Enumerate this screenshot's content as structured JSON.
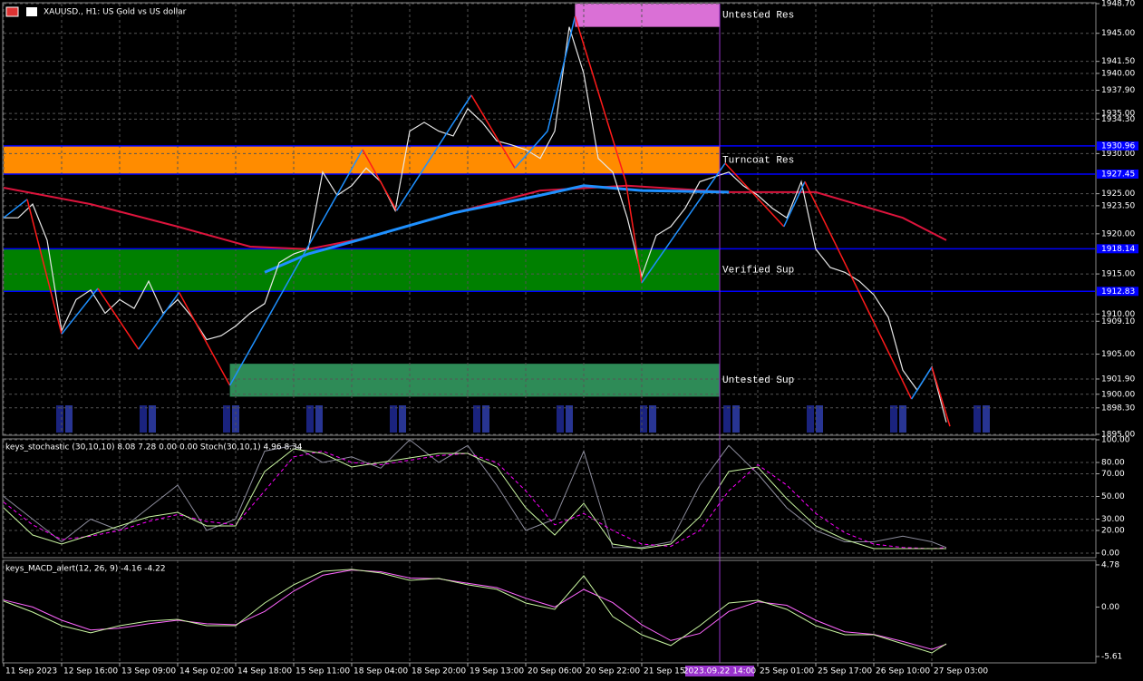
{
  "chart_data": [
    {
      "type": "line",
      "title": "XAUUSD., H1: US Gold vs US dollar",
      "xlim": [
        0,
        75.25
      ],
      "ylim": [
        1895,
        1948.7
      ],
      "grid": true,
      "xticks": [
        {
          "value": 0,
          "label": "11 Sep 2023"
        },
        {
          "value": 4,
          "label": "12 Sep 16:00"
        },
        {
          "value": 8,
          "label": "13 Sep 09:00"
        },
        {
          "value": 12,
          "label": "14 Sep 02:00"
        },
        {
          "value": 16,
          "label": "14 Sep 18:00"
        },
        {
          "value": 20,
          "label": "15 Sep 11:00"
        },
        {
          "value": 24,
          "label": "18 Sep 04:00"
        },
        {
          "value": 28,
          "label": "18 Sep 20:00"
        },
        {
          "value": 32,
          "label": "19 Sep 13:00"
        },
        {
          "value": 36,
          "label": "20 Sep 06:00"
        },
        {
          "value": 40,
          "label": "20 Sep 22:00"
        },
        {
          "value": 44,
          "label": "21 Sep 15:00"
        },
        {
          "value": 52,
          "label": "25 Sep 01:00"
        },
        {
          "value": 56,
          "label": "25 Sep 17:00"
        },
        {
          "value": 60,
          "label": "26 Sep 10:00"
        },
        {
          "value": 64,
          "label": "27 Sep 03:00"
        }
      ],
      "cursor": {
        "value": 49.375,
        "label": "2023.09.22 14:00"
      },
      "yticks": [
        {
          "value": 1948.7,
          "label": "1948.70"
        },
        {
          "value": 1945,
          "label": "1945.00"
        },
        {
          "value": 1941.5,
          "label": "1941.50"
        },
        {
          "value": 1940,
          "label": "1940.00"
        },
        {
          "value": 1937.9,
          "label": "1937.90"
        },
        {
          "value": 1935,
          "label": "1935.00"
        },
        {
          "value": 1934.3,
          "label": "1934.30"
        },
        {
          "value": 1930,
          "label": "1930.00"
        },
        {
          "value": 1925,
          "label": "1925.00"
        },
        {
          "value": 1923.5,
          "label": "1923.50"
        },
        {
          "value": 1920,
          "label": "1920.00"
        },
        {
          "value": 1915,
          "label": "1915.00"
        },
        {
          "value": 1910,
          "label": "1910.00"
        },
        {
          "value": 1909.1,
          "label": "1909.10"
        },
        {
          "value": 1905,
          "label": "1905.00"
        },
        {
          "value": 1901.9,
          "label": "1901.90"
        },
        {
          "value": 1900,
          "label": "1900.00"
        },
        {
          "value": 1898.3,
          "label": "1898.30"
        },
        {
          "value": 1895,
          "label": "1895.00"
        }
      ],
      "zones": [
        {
          "label": "Untested Res",
          "x": [
            39.4,
            49.375
          ],
          "low": 1945.8,
          "high": 1948.7,
          "color": "#da70d6"
        },
        {
          "label": "Turncoat Res",
          "x": [
            0,
            49.375
          ],
          "low": 1927.45,
          "high": 1930.96,
          "color": "#ff8c00",
          "border": "#0000ff"
        },
        {
          "label": "Verified Sup",
          "x": [
            0,
            49.375
          ],
          "low": 1912.83,
          "high": 1918.14,
          "color": "#008000",
          "border": "#0000ff"
        },
        {
          "label": "Untested Sup",
          "x": [
            15.6,
            49.375
          ],
          "low": 1899.7,
          "high": 1903.8,
          "color": "#2e8b57"
        }
      ],
      "series": [
        {
          "color": "#dc143c",
          "width": 2,
          "x": [
            0,
            6,
            12,
            17,
            21,
            25,
            31,
            37,
            43,
            50,
            56,
            62,
            65
          ],
          "values": [
            1925.75,
            1923.7,
            1920.9,
            1918.4,
            1918.1,
            1919.5,
            1922.6,
            1925.4,
            1926.0,
            1925.2,
            1925.2,
            1922.0,
            1919.2
          ]
        },
        {
          "color": "#1e90ff",
          "width": 3,
          "x": [
            18,
            21,
            25,
            31,
            37,
            40,
            44,
            50
          ],
          "values": [
            1915.2,
            1917.5,
            1919.5,
            1922.6,
            1924.8,
            1926.0,
            1925.4,
            1925.2
          ]
        },
        {
          "color": "#e8e8e8",
          "width": 1.2,
          "x": [
            0,
            1,
            2,
            3,
            4,
            5,
            6,
            7,
            8,
            9,
            10,
            11,
            12,
            13,
            14,
            15,
            16,
            17,
            18,
            19,
            20,
            21,
            22,
            23,
            24,
            25,
            26,
            27,
            28,
            29,
            30,
            31,
            32,
            33,
            34,
            35,
            36,
            37,
            38,
            39,
            40,
            41,
            42,
            43,
            44,
            45,
            46,
            47,
            48,
            49,
            50,
            51,
            52,
            53,
            54,
            55,
            56,
            57,
            58,
            59,
            60,
            61,
            62,
            63,
            64,
            65
          ],
          "values": [
            1922.0,
            1922.0,
            1923.7,
            1919.2,
            1907.9,
            1911.8,
            1913.0,
            1910.1,
            1911.8,
            1910.7,
            1914.1,
            1910.1,
            1911.8,
            1909.6,
            1906.8,
            1907.3,
            1908.5,
            1910.1,
            1911.3,
            1916.4,
            1917.5,
            1918.1,
            1927.7,
            1924.8,
            1926.0,
            1928.2,
            1926.5,
            1922.9,
            1932.8,
            1933.9,
            1932.8,
            1932.2,
            1935.6,
            1933.9,
            1931.6,
            1931.1,
            1930.5,
            1929.4,
            1932.8,
            1945.8,
            1940.0,
            1929.4,
            1927.7,
            1922.0,
            1914.7,
            1919.8,
            1920.9,
            1923.2,
            1926.5,
            1927.1,
            1927.7,
            1926.0,
            1924.8,
            1923.2,
            1922.0,
            1926.5,
            1918.1,
            1915.8,
            1915.2,
            1914.1,
            1912.4,
            1909.6,
            1903.0,
            1900.5,
            1903.4,
            1896.5
          ]
        }
      ],
      "zigzag": {
        "up_color": "#1e90ff",
        "down_color": "#ff1a1a",
        "x": [
          0,
          1.625,
          4,
          6.5,
          9.3,
          12.1,
          15.6,
          24.75,
          27.1,
          32.25,
          35.25,
          37.5,
          39.4,
          42.9,
          44,
          49.75,
          53.8,
          55.25,
          62.6,
          64,
          65.25
        ],
        "values": [
          1922.0,
          1924.3,
          1907.5,
          1913.2,
          1905.6,
          1912.7,
          1901.1,
          1930.5,
          1922.9,
          1937.3,
          1928.2,
          1932.8,
          1947.1,
          1926.5,
          1913.9,
          1928.8,
          1920.9,
          1926.5,
          1899.4,
          1903.4,
          1896.0
        ]
      }
    },
    {
      "type": "line",
      "title": "keys_stochastic (30,10,10) 8.08 7.28 0.00 0.00 Stoch(30,10,1) 4.96 8.34",
      "xlim": [
        0,
        75.25
      ],
      "ylim": [
        0,
        100
      ],
      "grid": true,
      "yticks": [
        {
          "value": 100,
          "label": "100.00"
        },
        {
          "value": 80,
          "label": "80.00"
        },
        {
          "value": 70,
          "label": "70.00"
        },
        {
          "value": 50,
          "label": "50.00"
        },
        {
          "value": 30,
          "label": "30.00"
        },
        {
          "value": 20,
          "label": "20.00"
        },
        {
          "value": 0,
          "label": "0.00"
        }
      ],
      "series": [
        {
          "color": "#8c8c9c",
          "width": 1,
          "x": [
            0,
            2,
            4,
            6,
            8,
            10,
            12,
            14,
            16,
            18,
            20,
            22,
            24,
            26,
            28,
            30,
            32,
            34,
            36,
            38,
            40,
            42,
            44,
            46,
            48,
            50,
            52,
            54,
            56,
            58,
            60,
            62,
            64,
            65
          ],
          "values": [
            50,
            30,
            10,
            30,
            20,
            40,
            60,
            20,
            30,
            90,
            95,
            80,
            85,
            75,
            100,
            80,
            95,
            60,
            20,
            30,
            90,
            5,
            5,
            10,
            60,
            95,
            70,
            40,
            20,
            10,
            10,
            15,
            10,
            5
          ]
        },
        {
          "color": "#ff00ff",
          "width": 1,
          "dash": true,
          "x": [
            0,
            2,
            4,
            6,
            8,
            10,
            12,
            14,
            16,
            18,
            20,
            22,
            24,
            26,
            28,
            30,
            32,
            34,
            36,
            38,
            40,
            42,
            44,
            46,
            48,
            50,
            52,
            54,
            56,
            58,
            60,
            62,
            64,
            65
          ],
          "values": [
            45,
            25,
            12,
            15,
            20,
            28,
            34,
            28,
            25,
            55,
            85,
            90,
            80,
            78,
            82,
            86,
            88,
            80,
            55,
            25,
            35,
            20,
            8,
            6,
            20,
            55,
            78,
            60,
            35,
            18,
            8,
            5,
            4,
            5
          ]
        },
        {
          "color": "#c8f5a0",
          "width": 1,
          "x": [
            0,
            2,
            4,
            6,
            8,
            10,
            12,
            14,
            16,
            18,
            20,
            22,
            24,
            26,
            28,
            30,
            32,
            34,
            36,
            38,
            40,
            42,
            44,
            46,
            48,
            50,
            52,
            54,
            56,
            58,
            60,
            62,
            64,
            65
          ],
          "values": [
            40,
            16,
            8,
            16,
            24,
            32,
            36,
            24,
            24,
            72,
            92,
            88,
            76,
            80,
            84,
            88,
            88,
            76,
            40,
            16,
            44,
            8,
            4,
            8,
            32,
            72,
            76,
            48,
            24,
            12,
            4,
            4,
            4,
            4
          ]
        }
      ]
    },
    {
      "type": "line",
      "title": "keys_MACD_alert(12, 26, 9) -4.16 -4.22",
      "xlim": [
        0,
        75.25
      ],
      "ylim": [
        -6.33,
        5.29
      ],
      "grid": false,
      "yticks": [
        4.78,
        {
          "value": 0,
          "label": "0.00"
        },
        -5.61
      ],
      "series": [
        {
          "color": "#ff66ff",
          "width": 1,
          "x": [
            0,
            2,
            4,
            6,
            8,
            10,
            12,
            14,
            16,
            18,
            20,
            22,
            24,
            26,
            28,
            30,
            32,
            34,
            36,
            38,
            40,
            42,
            44,
            46,
            48,
            50,
            52,
            54,
            56,
            58,
            60,
            62,
            64,
            65
          ],
          "values": [
            0.8,
            0.0,
            -1.5,
            -2.6,
            -2.4,
            -1.9,
            -1.5,
            -1.9,
            -2.0,
            -0.5,
            1.8,
            3.6,
            4.2,
            4.0,
            3.3,
            3.2,
            2.7,
            2.2,
            1.0,
            0.0,
            2.0,
            0.5,
            -2.0,
            -3.8,
            -3.0,
            -0.5,
            0.6,
            0.2,
            -1.5,
            -2.8,
            -3.1,
            -3.9,
            -4.8,
            -4.22
          ]
        },
        {
          "color": "#c8f5a0",
          "width": 1,
          "x": [
            0,
            2,
            4,
            6,
            8,
            10,
            12,
            14,
            16,
            18,
            20,
            22,
            24,
            26,
            28,
            30,
            32,
            34,
            36,
            38,
            40,
            42,
            44,
            46,
            48,
            50,
            52,
            54,
            56,
            58,
            60,
            62,
            64,
            65
          ],
          "values": [
            0.67,
            -0.57,
            -2.11,
            -2.93,
            -2.11,
            -1.59,
            -1.39,
            -2.11,
            -2.11,
            0.46,
            2.52,
            4.06,
            4.27,
            3.86,
            3.03,
            3.24,
            2.52,
            2.01,
            0.46,
            -0.26,
            3.55,
            -1.08,
            -3.14,
            -4.37,
            -2.11,
            0.46,
            0.77,
            -0.26,
            -2.11,
            -3.14,
            -3.14,
            -4.17,
            -5.2,
            -4.16
          ]
        }
      ]
    }
  ]
}
